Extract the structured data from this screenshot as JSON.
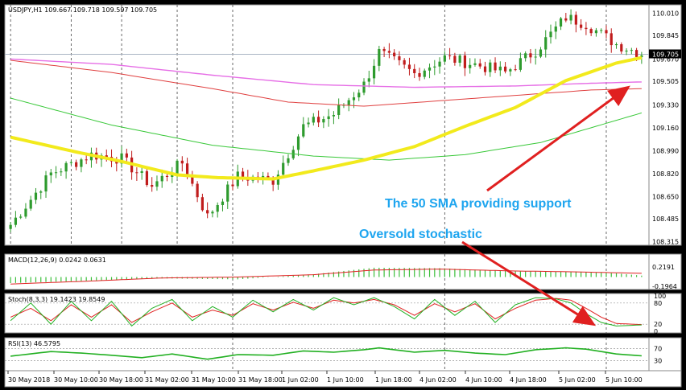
{
  "colors": {
    "up": "#2e9b2e",
    "down": "#c01c1c",
    "sma50": "#f2ea1c",
    "sma100": "#e66ee6",
    "sma200_red": "#e04040",
    "sma200_green": "#38c838",
    "arrow": "#e02020",
    "annotation": "#1ea5ef",
    "macd_hist": "#3bbf3b",
    "macd_signal": "#e02020",
    "stoch_main": "#22b022",
    "stoch_signal": "#e02020",
    "rsi": "#22b022"
  },
  "chart_data": {
    "type": "candlestick",
    "symbol_header": "USDJPY,H1  109.667 109.718 109.597 109.705",
    "current_price": "109.705",
    "price_axis": {
      "ylim": [
        108.3,
        110.06
      ],
      "ticks": [
        "110.010",
        "109.845",
        "109.670",
        "109.505",
        "109.330",
        "109.160",
        "108.990",
        "108.820",
        "108.650",
        "108.485",
        "108.315"
      ]
    },
    "x_ticks": [
      "30 May 2018",
      "30 May 10:00",
      "30 May 18:00",
      "31 May 02:00",
      "31 May 10:00",
      "31 May 18:00",
      "1 Jun 02:00",
      "1 Jun 10:00",
      "1 Jun 18:00",
      "4 Jun 02:00",
      "4 Jun 10:00",
      "4 Jun 18:00",
      "5 Jun 02:00",
      "5 Jun 10:00"
    ],
    "anchors": [
      {
        "i": 0,
        "c": 108.44
      },
      {
        "i": 8,
        "c": 108.82
      },
      {
        "i": 16,
        "c": 108.96
      },
      {
        "i": 22,
        "c": 108.93
      },
      {
        "i": 28,
        "c": 108.73
      },
      {
        "i": 34,
        "c": 108.9
      },
      {
        "i": 39,
        "c": 108.5
      },
      {
        "i": 45,
        "c": 108.8
      },
      {
        "i": 52,
        "c": 108.77
      },
      {
        "i": 58,
        "c": 109.17
      },
      {
        "i": 64,
        "c": 109.26
      },
      {
        "i": 70,
        "c": 109.48
      },
      {
        "i": 73,
        "c": 109.72
      },
      {
        "i": 80,
        "c": 109.56
      },
      {
        "i": 86,
        "c": 109.68
      },
      {
        "i": 92,
        "c": 109.63
      },
      {
        "i": 98,
        "c": 109.57
      },
      {
        "i": 104,
        "c": 109.73
      },
      {
        "i": 110,
        "c": 109.98
      },
      {
        "i": 114,
        "c": 109.93
      },
      {
        "i": 120,
        "c": 109.78
      },
      {
        "i": 125,
        "c": 109.71
      }
    ],
    "sma50_points": [
      [
        0,
        109.09
      ],
      [
        13,
        108.98
      ],
      [
        22,
        108.91
      ],
      [
        33,
        108.81
      ],
      [
        41,
        108.79
      ],
      [
        52,
        108.78
      ],
      [
        60,
        108.84
      ],
      [
        70,
        108.92
      ],
      [
        80,
        109.02
      ],
      [
        90,
        109.17
      ],
      [
        100,
        109.31
      ],
      [
        110,
        109.51
      ],
      [
        120,
        109.64
      ],
      [
        125,
        109.68
      ]
    ],
    "sma100_points": [
      [
        0,
        109.67
      ],
      [
        20,
        109.63
      ],
      [
        40,
        109.55
      ],
      [
        60,
        109.48
      ],
      [
        80,
        109.46
      ],
      [
        100,
        109.47
      ],
      [
        115,
        109.49
      ],
      [
        125,
        109.5
      ]
    ],
    "sma200_red_points": [
      [
        0,
        109.66
      ],
      [
        20,
        109.57
      ],
      [
        40,
        109.45
      ],
      [
        55,
        109.35
      ],
      [
        70,
        109.32
      ],
      [
        85,
        109.36
      ],
      [
        100,
        109.4
      ],
      [
        115,
        109.44
      ],
      [
        125,
        109.45
      ]
    ],
    "sma200_green_points": [
      [
        0,
        109.38
      ],
      [
        20,
        109.18
      ],
      [
        40,
        109.03
      ],
      [
        60,
        108.95
      ],
      [
        75,
        108.92
      ],
      [
        90,
        108.96
      ],
      [
        105,
        109.05
      ],
      [
        115,
        109.16
      ],
      [
        125,
        109.27
      ]
    ],
    "annotations": {
      "sma_text": "The 50 SMA providing support",
      "stoch_text": "Oversold stochastic"
    },
    "macd": {
      "label": "MACD(12,26,9) 0.0242 0.0631",
      "ticks": [
        "0.2191",
        "-0.1964"
      ],
      "ylim": [
        -0.25,
        0.25
      ],
      "hist_points": [
        [
          0,
          -0.13
        ],
        [
          15,
          -0.08
        ],
        [
          30,
          -0.03
        ],
        [
          45,
          -0.05
        ],
        [
          60,
          0.06
        ],
        [
          72,
          0.2
        ],
        [
          85,
          0.19
        ],
        [
          100,
          0.12
        ],
        [
          112,
          0.12
        ],
        [
          120,
          0.08
        ],
        [
          125,
          0.03
        ]
      ],
      "signal_points": [
        [
          0,
          -0.15
        ],
        [
          15,
          -0.09
        ],
        [
          30,
          -0.02
        ],
        [
          45,
          0.0
        ],
        [
          60,
          0.05
        ],
        [
          72,
          0.15
        ],
        [
          85,
          0.17
        ],
        [
          100,
          0.13
        ],
        [
          112,
          0.11
        ],
        [
          125,
          0.08
        ]
      ]
    },
    "stoch": {
      "label": "Stoch(8,3,3) 19.1423 19.8549",
      "ticks": [
        "100",
        "80",
        "20",
        "0"
      ],
      "ylim": [
        0,
        100
      ],
      "main_points": [
        [
          0,
          30
        ],
        [
          4,
          80
        ],
        [
          8,
          20
        ],
        [
          12,
          85
        ],
        [
          16,
          30
        ],
        [
          20,
          85
        ],
        [
          24,
          15
        ],
        [
          28,
          65
        ],
        [
          32,
          90
        ],
        [
          36,
          30
        ],
        [
          40,
          70
        ],
        [
          44,
          40
        ],
        [
          48,
          88
        ],
        [
          52,
          55
        ],
        [
          56,
          90
        ],
        [
          60,
          60
        ],
        [
          64,
          95
        ],
        [
          68,
          75
        ],
        [
          72,
          95
        ],
        [
          76,
          70
        ],
        [
          80,
          35
        ],
        [
          84,
          90
        ],
        [
          88,
          45
        ],
        [
          92,
          85
        ],
        [
          96,
          25
        ],
        [
          100,
          75
        ],
        [
          104,
          95
        ],
        [
          108,
          92
        ],
        [
          111,
          80
        ],
        [
          114,
          50
        ],
        [
          117,
          25
        ],
        [
          120,
          15
        ],
        [
          125,
          18
        ]
      ],
      "signal_points": [
        [
          0,
          40
        ],
        [
          4,
          65
        ],
        [
          8,
          30
        ],
        [
          12,
          75
        ],
        [
          16,
          40
        ],
        [
          20,
          75
        ],
        [
          24,
          25
        ],
        [
          28,
          55
        ],
        [
          32,
          80
        ],
        [
          36,
          40
        ],
        [
          40,
          60
        ],
        [
          44,
          45
        ],
        [
          48,
          78
        ],
        [
          52,
          60
        ],
        [
          56,
          82
        ],
        [
          60,
          65
        ],
        [
          64,
          88
        ],
        [
          68,
          80
        ],
        [
          72,
          90
        ],
        [
          76,
          75
        ],
        [
          80,
          45
        ],
        [
          84,
          78
        ],
        [
          88,
          55
        ],
        [
          92,
          78
        ],
        [
          96,
          35
        ],
        [
          100,
          65
        ],
        [
          104,
          88
        ],
        [
          108,
          93
        ],
        [
          111,
          88
        ],
        [
          114,
          65
        ],
        [
          117,
          40
        ],
        [
          120,
          22
        ],
        [
          125,
          19
        ]
      ]
    },
    "rsi": {
      "label": "RSI(13) 46.5795",
      "ticks": [
        "70",
        "30"
      ],
      "ylim": [
        0,
        100
      ],
      "points": [
        [
          0,
          45
        ],
        [
          8,
          60
        ],
        [
          14,
          55
        ],
        [
          20,
          48
        ],
        [
          26,
          40
        ],
        [
          32,
          52
        ],
        [
          39,
          35
        ],
        [
          45,
          50
        ],
        [
          52,
          48
        ],
        [
          58,
          62
        ],
        [
          64,
          58
        ],
        [
          70,
          66
        ],
        [
          73,
          72
        ],
        [
          80,
          58
        ],
        [
          86,
          64
        ],
        [
          92,
          55
        ],
        [
          98,
          50
        ],
        [
          104,
          66
        ],
        [
          110,
          72
        ],
        [
          114,
          68
        ],
        [
          120,
          52
        ],
        [
          125,
          46
        ]
      ]
    }
  }
}
